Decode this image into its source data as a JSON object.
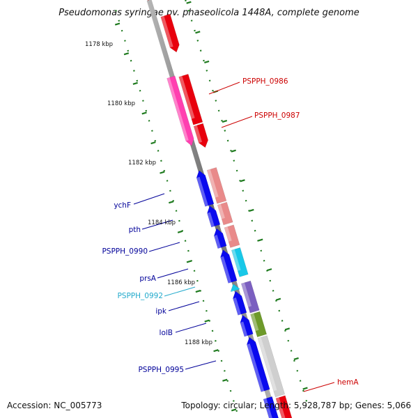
{
  "title": "Pseudomonas syringae pv. phaseolicola 1448A, complete genome",
  "accession": "Accession: NC_005773",
  "topology": "Topology: circular; Length: 5,928,787 bp; Genes: 5,066",
  "kbp_labels": [
    "1178 kbp",
    "1180 kbp",
    "1182 kbp",
    "1184 kbp",
    "1186 kbp",
    "1188 kbp"
  ],
  "gene_labels": {
    "pspph0986": "PSPPH_0986",
    "pspph0987": "PSPPH_0987",
    "hemA": "hemA",
    "ychF": "ychF",
    "pth": "pth",
    "pspph0990": "PSPPH_0990",
    "prsA": "prsA",
    "pspph0992": "PSPPH_0992",
    "ipk": "ipk",
    "lolB": "lolB",
    "pspph0995": "PSPPH_0995"
  },
  "colors": {
    "backbone": "#8a8a8a",
    "tick": "#1e7a1e",
    "red": "#e8000d",
    "magenta": "#ff3fb0",
    "blue": "#0a0aee",
    "salmon": "#e98a8a",
    "cyan": "#18c8e8",
    "purple": "#7b5fc0",
    "olive": "#6e9a2a",
    "grey": "#cfcfcf",
    "label_red": "#cc0000",
    "label_blue": "#000099",
    "label_cyan": "#22aacc"
  }
}
